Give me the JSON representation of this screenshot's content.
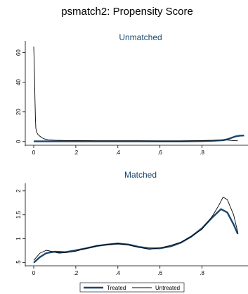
{
  "title": "psmatch2: Propensity Score",
  "colors": {
    "treated": "#1a476f",
    "untreated": "#000000",
    "subtitle": "#1a476f"
  },
  "legend": {
    "position": "bottom",
    "items": [
      "Treated",
      "Untreated"
    ]
  },
  "chart_data": [
    {
      "type": "line",
      "title": "Unmatched",
      "xlabel": "",
      "ylabel": "",
      "xlim": [
        0,
        1
      ],
      "ylim": [
        -2,
        66
      ],
      "xticks": [
        0,
        0.2,
        0.4,
        0.6,
        0.8
      ],
      "xtick_labels": [
        "0",
        ".2",
        ".4",
        ".6",
        ".8"
      ],
      "yticks": [
        0,
        20,
        40,
        60
      ],
      "ytick_labels": [
        "0",
        "20",
        "40",
        "60"
      ],
      "grid": false,
      "series": [
        {
          "name": "Treated",
          "x": [
            0.0,
            0.1,
            0.2,
            0.3,
            0.4,
            0.5,
            0.6,
            0.7,
            0.8,
            0.85,
            0.9,
            0.92,
            0.94,
            0.96,
            0.98,
            1.0
          ],
          "y": [
            0.2,
            0.2,
            0.2,
            0.2,
            0.2,
            0.2,
            0.2,
            0.2,
            0.3,
            0.5,
            0.9,
            1.5,
            2.5,
            3.5,
            4.0,
            4.1
          ]
        },
        {
          "name": "Untreated",
          "x": [
            0.0,
            0.002,
            0.004,
            0.006,
            0.008,
            0.01,
            0.015,
            0.02,
            0.03,
            0.04,
            0.05,
            0.07,
            0.1,
            0.15,
            0.2,
            0.3,
            0.4,
            0.5,
            0.6,
            0.7,
            0.8,
            0.85,
            0.9,
            0.92,
            0.95,
            0.97
          ],
          "y": [
            64,
            55,
            42,
            28,
            16,
            9,
            6,
            4.8,
            3.5,
            2.5,
            1.8,
            1.2,
            0.9,
            0.7,
            0.6,
            0.5,
            0.5,
            0.5,
            0.4,
            0.4,
            0.6,
            0.8,
            1.2,
            1.0,
            0.6,
            0.5
          ]
        }
      ]
    },
    {
      "type": "line",
      "title": "Matched",
      "xlabel": "",
      "ylabel": "",
      "xlim": [
        0,
        1
      ],
      "ylim": [
        0.45,
        2.1
      ],
      "xticks": [
        0,
        0.2,
        0.4,
        0.6,
        0.8
      ],
      "xtick_labels": [
        "0",
        ".2",
        ".4",
        ".6",
        ".8"
      ],
      "yticks": [
        0.5,
        1,
        1.5,
        2
      ],
      "ytick_labels": [
        ".5",
        "1",
        "1.5",
        "2"
      ],
      "grid": false,
      "series": [
        {
          "name": "Treated",
          "x": [
            0.0,
            0.03,
            0.06,
            0.1,
            0.15,
            0.2,
            0.25,
            0.3,
            0.35,
            0.4,
            0.45,
            0.5,
            0.55,
            0.6,
            0.65,
            0.7,
            0.75,
            0.8,
            0.85,
            0.89,
            0.92,
            0.95,
            0.97
          ],
          "y": [
            0.5,
            0.62,
            0.7,
            0.73,
            0.72,
            0.76,
            0.8,
            0.85,
            0.88,
            0.9,
            0.88,
            0.83,
            0.8,
            0.8,
            0.84,
            0.92,
            1.05,
            1.22,
            1.45,
            1.62,
            1.55,
            1.3,
            1.1
          ]
        },
        {
          "name": "Untreated",
          "x": [
            0.0,
            0.03,
            0.06,
            0.09,
            0.12,
            0.15,
            0.2,
            0.25,
            0.3,
            0.35,
            0.4,
            0.45,
            0.5,
            0.55,
            0.6,
            0.65,
            0.7,
            0.75,
            0.8,
            0.85,
            0.88,
            0.9,
            0.92,
            0.95,
            0.97
          ],
          "y": [
            0.55,
            0.7,
            0.76,
            0.73,
            0.7,
            0.71,
            0.74,
            0.8,
            0.85,
            0.88,
            0.9,
            0.87,
            0.82,
            0.78,
            0.81,
            0.86,
            0.93,
            1.05,
            1.2,
            1.48,
            1.7,
            1.87,
            1.82,
            1.5,
            1.13
          ]
        }
      ]
    }
  ]
}
